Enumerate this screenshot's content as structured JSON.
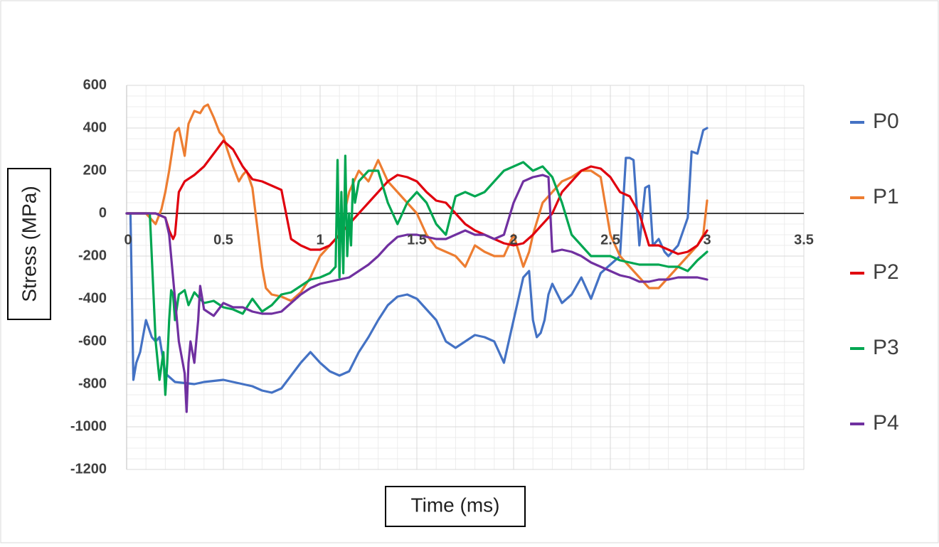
{
  "chart_data": {
    "type": "line",
    "title": "",
    "xlabel": "Time (ms)",
    "ylabel": "Stress (MPa)",
    "xlim": [
      0,
      3.5
    ],
    "ylim": [
      -1200,
      600
    ],
    "xticks": [
      0,
      0.5,
      1,
      1.5,
      2,
      2.5,
      3,
      3.5
    ],
    "yticks": [
      600,
      400,
      200,
      0,
      -200,
      -400,
      -600,
      -800,
      -1000,
      -1200
    ],
    "xtick_labels": [
      "0",
      "0.5",
      "1",
      "1.5",
      "2",
      "2.5",
      "3",
      "3.5"
    ],
    "ytick_labels": [
      "600",
      "400",
      "200",
      "0",
      "-200",
      "-400",
      "-600",
      "-800",
      "-1000",
      "-1200"
    ],
    "grid": true,
    "legend": "right",
    "series": [
      {
        "name": "P0",
        "color": "#4472C4",
        "x": [
          0,
          0.02,
          0.035,
          0.05,
          0.07,
          0.1,
          0.13,
          0.15,
          0.17,
          0.2,
          0.25,
          0.3,
          0.35,
          0.4,
          0.5,
          0.55,
          0.6,
          0.65,
          0.7,
          0.75,
          0.8,
          0.85,
          0.9,
          0.95,
          1.0,
          1.05,
          1.1,
          1.15,
          1.2,
          1.25,
          1.3,
          1.35,
          1.4,
          1.45,
          1.5,
          1.55,
          1.6,
          1.65,
          1.7,
          1.75,
          1.8,
          1.85,
          1.9,
          1.95,
          2.0,
          2.05,
          2.08,
          2.1,
          2.12,
          2.14,
          2.16,
          2.18,
          2.2,
          2.25,
          2.3,
          2.35,
          2.4,
          2.45,
          2.5,
          2.55,
          2.58,
          2.6,
          2.62,
          2.65,
          2.68,
          2.7,
          2.72,
          2.75,
          2.78,
          2.8,
          2.85,
          2.9,
          2.92,
          2.95,
          2.98,
          3.0
        ],
        "y": [
          0,
          0,
          -780,
          -700,
          -650,
          -500,
          -580,
          -600,
          -580,
          -750,
          -790,
          -795,
          -800,
          -790,
          -780,
          -790,
          -800,
          -810,
          -830,
          -840,
          -820,
          -760,
          -700,
          -650,
          -700,
          -740,
          -760,
          -740,
          -650,
          -580,
          -500,
          -430,
          -390,
          -380,
          -400,
          -450,
          -500,
          -600,
          -630,
          -600,
          -570,
          -580,
          -600,
          -700,
          -500,
          -300,
          -270,
          -500,
          -580,
          -560,
          -500,
          -380,
          -330,
          -420,
          -380,
          -300,
          -400,
          -280,
          -240,
          -200,
          260,
          260,
          250,
          -150,
          120,
          130,
          -150,
          -120,
          -180,
          -200,
          -150,
          -20,
          290,
          280,
          390,
          400
        ]
      },
      {
        "name": "P1",
        "color": "#ED7D31",
        "x": [
          0,
          0.1,
          0.15,
          0.18,
          0.2,
          0.22,
          0.25,
          0.27,
          0.3,
          0.32,
          0.35,
          0.38,
          0.4,
          0.42,
          0.45,
          0.48,
          0.5,
          0.52,
          0.55,
          0.58,
          0.6,
          0.62,
          0.65,
          0.68,
          0.7,
          0.72,
          0.75,
          0.8,
          0.85,
          0.9,
          0.95,
          1.0,
          1.05,
          1.1,
          1.15,
          1.2,
          1.25,
          1.3,
          1.35,
          1.4,
          1.45,
          1.5,
          1.55,
          1.6,
          1.65,
          1.7,
          1.75,
          1.8,
          1.85,
          1.9,
          1.95,
          2.0,
          2.05,
          2.08,
          2.1,
          2.15,
          2.2,
          2.25,
          2.3,
          2.35,
          2.4,
          2.45,
          2.5,
          2.55,
          2.6,
          2.65,
          2.7,
          2.75,
          2.8,
          2.85,
          2.9,
          2.95,
          2.98,
          3.0
        ],
        "y": [
          0,
          0,
          -50,
          20,
          100,
          200,
          380,
          400,
          270,
          420,
          480,
          470,
          500,
          510,
          450,
          380,
          360,
          300,
          220,
          150,
          180,
          200,
          120,
          -100,
          -250,
          -350,
          -380,
          -390,
          -410,
          -370,
          -300,
          -200,
          -150,
          -100,
          100,
          200,
          150,
          250,
          150,
          100,
          50,
          0,
          -100,
          -160,
          -180,
          -200,
          -250,
          -150,
          -180,
          -200,
          -200,
          -100,
          -250,
          -180,
          -100,
          50,
          100,
          150,
          170,
          200,
          200,
          170,
          -100,
          -200,
          -250,
          -300,
          -350,
          -350,
          -300,
          -250,
          -200,
          -150,
          -100,
          60
        ]
      },
      {
        "name": "P2",
        "color": "#E0000E",
        "x": [
          0,
          0.15,
          0.2,
          0.22,
          0.24,
          0.25,
          0.27,
          0.3,
          0.35,
          0.4,
          0.45,
          0.5,
          0.55,
          0.6,
          0.65,
          0.7,
          0.75,
          0.8,
          0.85,
          0.9,
          0.95,
          1.0,
          1.05,
          1.1,
          1.15,
          1.2,
          1.25,
          1.3,
          1.35,
          1.4,
          1.45,
          1.5,
          1.55,
          1.6,
          1.65,
          1.7,
          1.75,
          1.8,
          1.85,
          1.9,
          1.95,
          2.0,
          2.05,
          2.1,
          2.15,
          2.2,
          2.25,
          2.3,
          2.35,
          2.4,
          2.45,
          2.5,
          2.55,
          2.6,
          2.65,
          2.7,
          2.75,
          2.8,
          2.85,
          2.9,
          2.95,
          3.0
        ],
        "y": [
          0,
          0,
          -20,
          -80,
          -120,
          -100,
          100,
          150,
          180,
          220,
          280,
          340,
          300,
          220,
          160,
          150,
          130,
          110,
          -120,
          -150,
          -170,
          -170,
          -150,
          -100,
          -50,
          0,
          50,
          100,
          150,
          180,
          170,
          150,
          100,
          60,
          50,
          0,
          -50,
          -80,
          -100,
          -120,
          -140,
          -150,
          -140,
          -100,
          -50,
          0,
          100,
          150,
          200,
          220,
          210,
          170,
          100,
          80,
          0,
          -150,
          -150,
          -170,
          -190,
          -180,
          -150,
          -80
        ]
      },
      {
        "name": "P3",
        "color": "#00A651",
        "x": [
          0,
          0.1,
          0.12,
          0.15,
          0.17,
          0.19,
          0.2,
          0.21,
          0.22,
          0.23,
          0.24,
          0.25,
          0.27,
          0.3,
          0.32,
          0.35,
          0.38,
          0.4,
          0.45,
          0.5,
          0.55,
          0.6,
          0.65,
          0.7,
          0.75,
          0.8,
          0.85,
          0.9,
          0.95,
          1.0,
          1.05,
          1.08,
          1.09,
          1.1,
          1.11,
          1.12,
          1.13,
          1.14,
          1.15,
          1.16,
          1.17,
          1.18,
          1.2,
          1.25,
          1.3,
          1.35,
          1.4,
          1.45,
          1.5,
          1.55,
          1.6,
          1.65,
          1.7,
          1.75,
          1.8,
          1.85,
          1.9,
          1.95,
          2.0,
          2.05,
          2.1,
          2.15,
          2.2,
          2.25,
          2.3,
          2.35,
          2.4,
          2.45,
          2.5,
          2.55,
          2.6,
          2.65,
          2.7,
          2.75,
          2.8,
          2.85,
          2.9,
          2.95,
          3.0
        ],
        "y": [
          0,
          0,
          0,
          -600,
          -780,
          -650,
          -850,
          -700,
          -500,
          -360,
          -380,
          -500,
          -380,
          -360,
          -430,
          -370,
          -400,
          -420,
          -410,
          -440,
          -450,
          -470,
          -400,
          -460,
          -430,
          -380,
          -370,
          -340,
          -310,
          -300,
          -280,
          -250,
          250,
          -300,
          100,
          -280,
          270,
          -200,
          0,
          -150,
          160,
          50,
          150,
          200,
          200,
          50,
          -50,
          50,
          100,
          50,
          -50,
          -100,
          80,
          100,
          80,
          100,
          150,
          200,
          220,
          240,
          200,
          220,
          170,
          50,
          -100,
          -150,
          -200,
          -200,
          -200,
          -220,
          -230,
          -240,
          -240,
          -240,
          -250,
          -250,
          -270,
          -220,
          -180
        ]
      },
      {
        "name": "P4",
        "color": "#7030A0",
        "x": [
          0,
          0.15,
          0.2,
          0.22,
          0.25,
          0.27,
          0.29,
          0.3,
          0.31,
          0.32,
          0.33,
          0.35,
          0.37,
          0.38,
          0.4,
          0.45,
          0.5,
          0.55,
          0.6,
          0.65,
          0.7,
          0.75,
          0.8,
          0.85,
          0.9,
          0.95,
          1.0,
          1.05,
          1.1,
          1.15,
          1.2,
          1.25,
          1.3,
          1.35,
          1.4,
          1.45,
          1.5,
          1.55,
          1.6,
          1.65,
          1.7,
          1.75,
          1.8,
          1.85,
          1.9,
          1.95,
          2.0,
          2.05,
          2.1,
          2.15,
          2.18,
          2.2,
          2.25,
          2.3,
          2.35,
          2.4,
          2.45,
          2.5,
          2.55,
          2.6,
          2.65,
          2.7,
          2.75,
          2.8,
          2.85,
          2.9,
          2.95,
          3.0
        ],
        "y": [
          0,
          0,
          -20,
          -100,
          -400,
          -600,
          -700,
          -750,
          -930,
          -700,
          -600,
          -700,
          -500,
          -340,
          -450,
          -480,
          -420,
          -440,
          -440,
          -460,
          -470,
          -470,
          -460,
          -420,
          -380,
          -350,
          -330,
          -320,
          -310,
          -300,
          -270,
          -240,
          -200,
          -150,
          -110,
          -100,
          -100,
          -110,
          -120,
          -120,
          -100,
          -80,
          -100,
          -100,
          -120,
          -100,
          50,
          150,
          170,
          180,
          170,
          -180,
          -170,
          -180,
          -200,
          -230,
          -250,
          -270,
          -290,
          -300,
          -320,
          -320,
          -310,
          -310,
          -300,
          -300,
          -300,
          -310
        ]
      }
    ]
  }
}
